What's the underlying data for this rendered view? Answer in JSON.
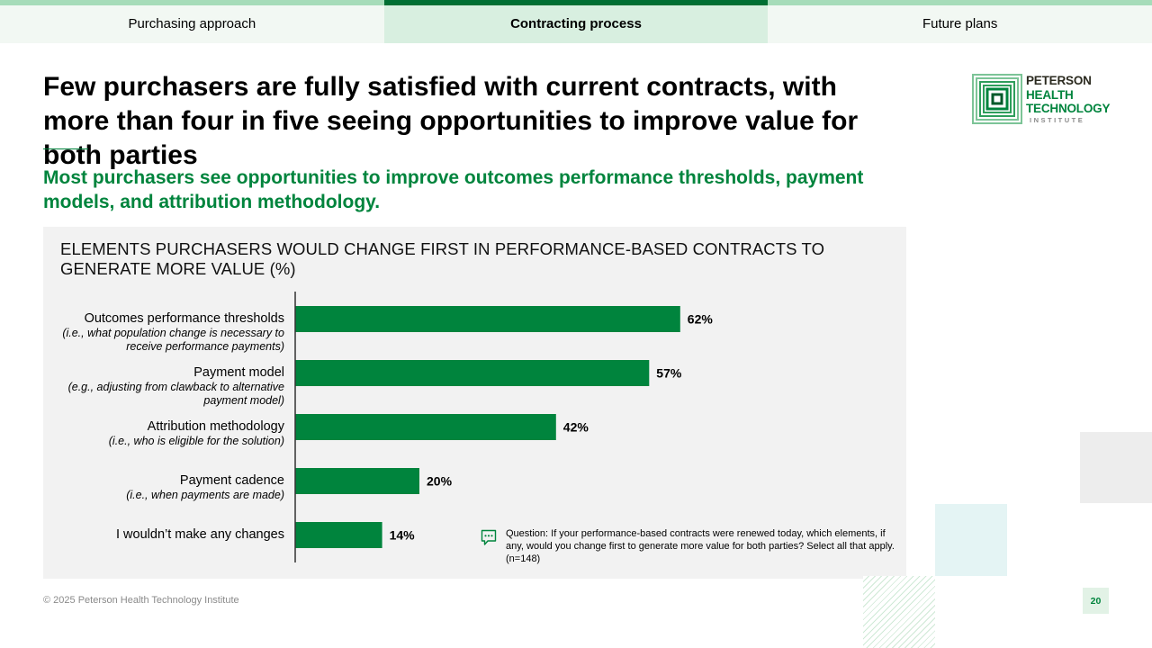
{
  "tabs": [
    {
      "label": "Purchasing approach",
      "active": false
    },
    {
      "label": "Contracting process",
      "active": true
    },
    {
      "label": "Future plans",
      "active": false
    }
  ],
  "title": "Few purchasers are fully satisfied with current contracts, with more than four in five seeing opportunities to improve value for both parties",
  "subtitle": "Most purchasers see opportunities to improve outcomes performance thresholds, payment models, and attribution methodology.",
  "logo": {
    "line1": "PETERSON",
    "line2": "HEALTH",
    "line3": "TECHNOLOGY",
    "line4": "INSTITUTE"
  },
  "chart_title": "ELEMENTS PURCHASERS WOULD CHANGE FIRST IN PERFORMANCE-BASED CONTRACTS TO GENERATE MORE VALUE (%)",
  "categories": [
    {
      "name": "Outcomes performance thresholds",
      "note": "(i.e., what population change is necessary to receive performance payments)"
    },
    {
      "name": "Payment model",
      "note": "(e.g., adjusting from clawback to alternative payment model)"
    },
    {
      "name": "Attribution methodology",
      "note": "(i.e., who is eligible for the solution)"
    },
    {
      "name": "Payment cadence",
      "note": "(i.e., when payments are made)"
    },
    {
      "name": "I wouldn’t make any changes",
      "note": ""
    }
  ],
  "chart_data": {
    "type": "bar",
    "orientation": "horizontal",
    "title": "ELEMENTS PURCHASERS WOULD CHANGE FIRST IN PERFORMANCE-BASED CONTRACTS TO GENERATE MORE VALUE (%)",
    "categories": [
      "Outcomes performance thresholds",
      "Payment model",
      "Attribution methodology",
      "Payment cadence",
      "I wouldn’t make any changes"
    ],
    "values": [
      62,
      57,
      42,
      20,
      14
    ],
    "value_labels": [
      "62%",
      "57%",
      "42%",
      "20%",
      "14%"
    ],
    "unit": "%",
    "xlim": [
      0,
      100
    ],
    "bar_color": "#00843d",
    "grid": false,
    "legend": "none"
  },
  "question": "Question: If your performance-based contracts were renewed today, which elements, if any, would you change first to generate more value for both parties? Select all that apply. (n=148)",
  "footer": "© 2025 Peterson Health Technology Institute",
  "page_number": "20",
  "colors": {
    "accent": "#00843d",
    "tab_active_bar": "#006f33",
    "tab_bar": "#a6dcb9",
    "panel_bg": "#f2f2f2"
  }
}
